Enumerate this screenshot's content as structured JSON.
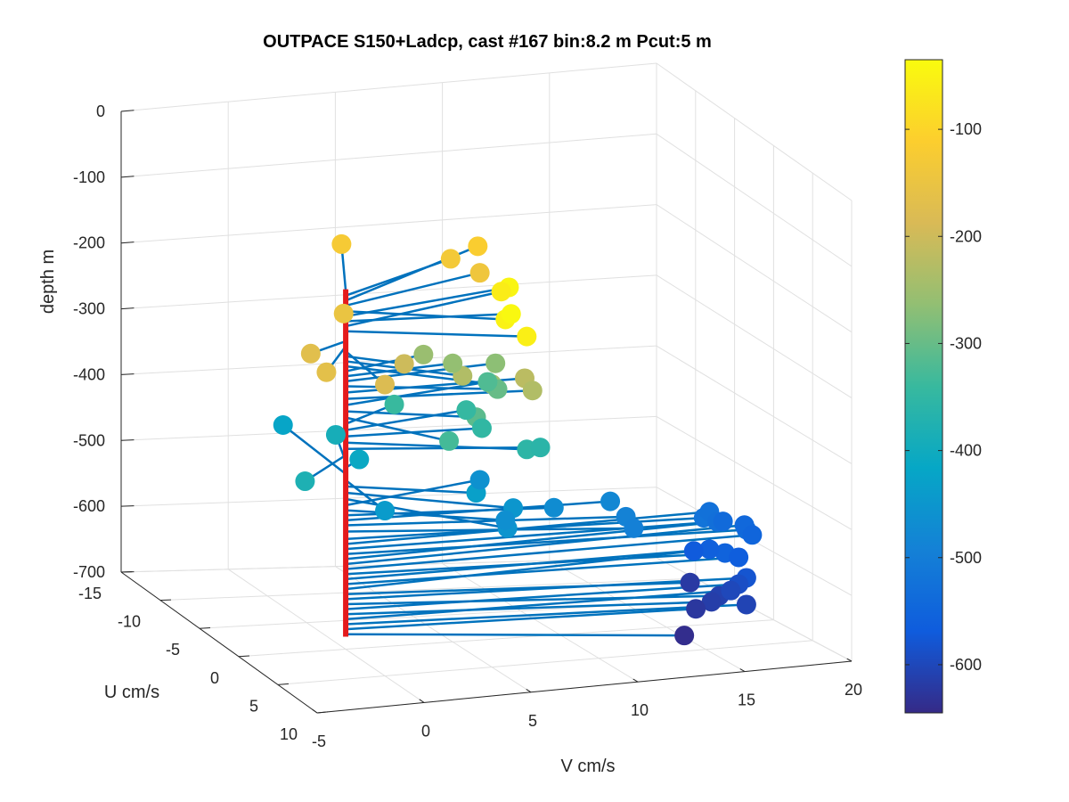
{
  "chart_data": {
    "type": "scatter",
    "title": "OUTPACE S150+Ladcp, cast #167 bin:8.2 m  Pcut:5 m",
    "xlabel": "V cm/s",
    "ylabel": "U cm/s",
    "zlabel": "depth m",
    "v_ticks": [
      "-5",
      "0",
      "5",
      "10",
      "15",
      "20"
    ],
    "u_ticks": [
      "-15",
      "-10",
      "-5",
      "0",
      "5",
      "10"
    ],
    "z_ticks": [
      "0",
      "-100",
      "-200",
      "-300",
      "-400",
      "-500",
      "-600",
      "-700"
    ],
    "v_lim": [
      -5,
      20
    ],
    "u_lim": [
      -15,
      10
    ],
    "z_lim": [
      -700,
      0
    ],
    "grid": true,
    "profile_line_color": "#e41a1c",
    "vector_color": "#0072bd",
    "colormap": "parula",
    "colorbar": {
      "ticks": [
        "-100",
        "-200",
        "-300",
        "-400",
        "-500",
        "-600"
      ],
      "tick_values": [
        -100,
        -200,
        -300,
        -400,
        -500,
        -600
      ],
      "range": [
        -645,
        -35
      ]
    },
    "profile_depth_range": [
      -125,
      -680
    ],
    "vectors": [
      {
        "z": -127,
        "v": 2,
        "u": -6,
        "c": -125
      },
      {
        "z": -135,
        "v": 6,
        "u": -3,
        "c": -130
      },
      {
        "z": -143,
        "v": 8,
        "u": -5,
        "c": -115
      },
      {
        "z": -151,
        "v": 7,
        "u": -2,
        "c": -140
      },
      {
        "z": -160,
        "v": 6,
        "u": 4,
        "c": -50
      },
      {
        "z": -168,
        "v": 8,
        "u": -1,
        "c": -45
      },
      {
        "z": -176,
        "v": 7,
        "u": 2,
        "c": -40
      },
      {
        "z": -184,
        "v": 8,
        "u": -2,
        "c": -60
      },
      {
        "z": -192,
        "v": 7,
        "u": 4,
        "c": -55
      },
      {
        "z": -200,
        "v": 1,
        "u": -3,
        "c": -150
      },
      {
        "z": -208,
        "v": -2,
        "u": 1,
        "c": -170
      },
      {
        "z": -216,
        "v": -2,
        "u": 3,
        "c": -165
      },
      {
        "z": -224,
        "v": 0,
        "u": 5,
        "c": -180
      },
      {
        "z": -232,
        "v": 2,
        "u": 2,
        "c": -200
      },
      {
        "z": -240,
        "v": 4,
        "u": 4,
        "c": -230
      },
      {
        "z": -248,
        "v": 5,
        "u": 5,
        "c": -250
      },
      {
        "z": -256,
        "v": 4,
        "u": -1,
        "c": -255
      },
      {
        "z": -264,
        "v": 5,
        "u": 0,
        "c": -262
      },
      {
        "z": -272,
        "v": 7,
        "u": 0,
        "c": -268
      },
      {
        "z": -280,
        "v": 6,
        "u": 3,
        "c": -300
      },
      {
        "z": -290,
        "v": 8,
        "u": 1,
        "c": -220
      },
      {
        "z": -300,
        "v": 8,
        "u": 2,
        "c": -230
      },
      {
        "z": -310,
        "v": 7,
        "u": -1,
        "c": -320
      },
      {
        "z": -320,
        "v": 5,
        "u": 3,
        "c": -310
      },
      {
        "z": -330,
        "v": 3,
        "u": 5,
        "c": -330
      },
      {
        "z": -340,
        "v": 3,
        "u": -2,
        "c": -340
      },
      {
        "z": -350,
        "v": 6,
        "u": -1,
        "c": -345
      },
      {
        "z": -360,
        "v": 6,
        "u": 1,
        "c": -350
      },
      {
        "z": -370,
        "v": 7,
        "u": 4,
        "c": -355
      },
      {
        "z": -380,
        "v": 8,
        "u": 3,
        "c": -360
      },
      {
        "z": -390,
        "v": -3,
        "u": 3,
        "c": -380
      },
      {
        "z": -400,
        "v": 1,
        "u": -4,
        "c": -390
      },
      {
        "z": -410,
        "v": 1,
        "u": -1,
        "c": -410
      },
      {
        "z": -420,
        "v": 0,
        "u": -8,
        "c": -420
      },
      {
        "z": -430,
        "v": 0,
        "u": 5,
        "c": -440
      },
      {
        "z": -440,
        "v": 5,
        "u": 3,
        "c": -430
      },
      {
        "z": -450,
        "v": 6,
        "u": 5,
        "c": -450
      },
      {
        "z": -460,
        "v": 5,
        "u": 7,
        "c": -455
      },
      {
        "z": -470,
        "v": 7,
        "u": -2,
        "c": -460
      },
      {
        "z": -478,
        "v": 6,
        "u": 4,
        "c": -465
      },
      {
        "z": -486,
        "v": 9,
        "u": 2,
        "c": -470
      },
      {
        "z": -494,
        "v": 12,
        "u": 1,
        "c": -480
      },
      {
        "z": -502,
        "v": 12,
        "u": 3,
        "c": -490
      },
      {
        "z": -512,
        "v": 12,
        "u": 4,
        "c": -495
      },
      {
        "z": -524,
        "v": 16,
        "u": 2,
        "c": -520
      },
      {
        "z": -532,
        "v": 17,
        "u": 0,
        "c": -525
      },
      {
        "z": -540,
        "v": 17,
        "u": 1,
        "c": -530
      },
      {
        "z": -548,
        "v": 18,
        "u": 2,
        "c": -535
      },
      {
        "z": -556,
        "v": 18,
        "u": -1,
        "c": -540
      },
      {
        "z": -564,
        "v": 19,
        "u": -1,
        "c": -545
      },
      {
        "z": -572,
        "v": 19,
        "u": 0,
        "c": -550
      },
      {
        "z": -580,
        "v": 17,
        "u": 2,
        "c": -555
      },
      {
        "z": -588,
        "v": 17,
        "u": 0,
        "c": -560
      },
      {
        "z": -596,
        "v": 18,
        "u": 1,
        "c": -565
      },
      {
        "z": -604,
        "v": 17,
        "u": -2,
        "c": -570
      },
      {
        "z": -612,
        "v": 15,
        "u": 3,
        "c": -620
      },
      {
        "z": -620,
        "v": 18,
        "u": 2,
        "c": -580
      },
      {
        "z": -628,
        "v": 16,
        "u": 4,
        "c": -610
      },
      {
        "z": -636,
        "v": 18,
        "u": 1,
        "c": -590
      },
      {
        "z": -644,
        "v": 16,
        "u": 3,
        "c": -615
      },
      {
        "z": -652,
        "v": 18,
        "u": 0,
        "c": -600
      },
      {
        "z": -660,
        "v": 18,
        "u": 2,
        "c": -605
      },
      {
        "z": -668,
        "v": 16,
        "u": 1,
        "c": -625
      },
      {
        "z": -676,
        "v": 14,
        "u": 5,
        "c": -640
      }
    ]
  }
}
